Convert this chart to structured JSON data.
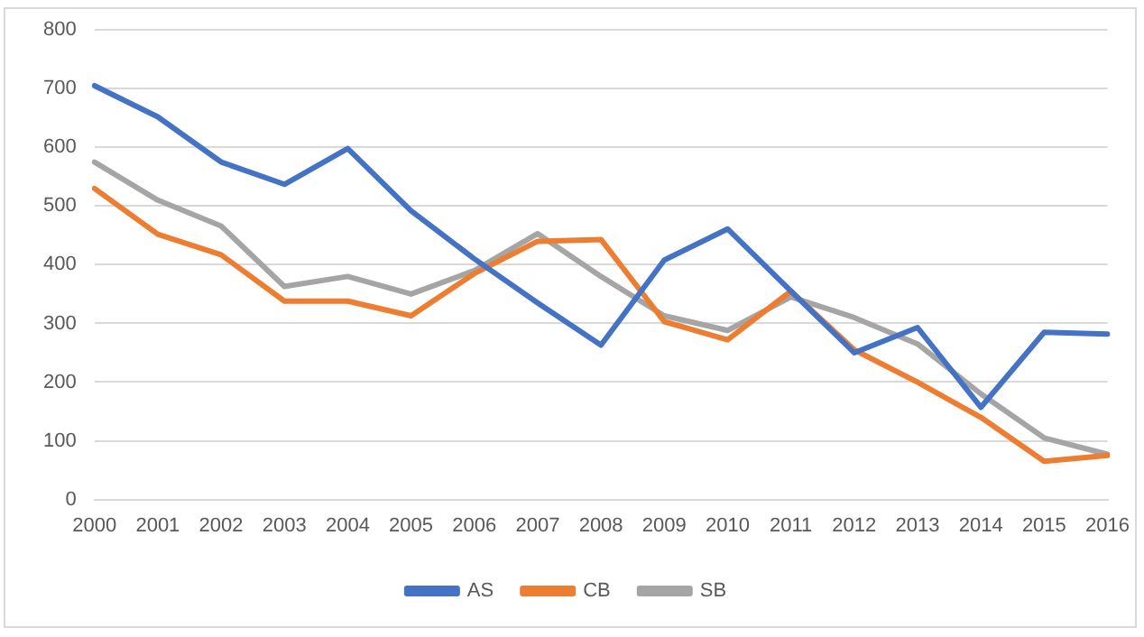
{
  "chart_data": {
    "type": "line",
    "categories": [
      "2000",
      "2001",
      "2002",
      "2003",
      "2004",
      "2005",
      "2006",
      "2007",
      "2008",
      "2009",
      "2010",
      "2011",
      "2012",
      "2013",
      "2014",
      "2015",
      "2016"
    ],
    "series": [
      {
        "name": "AS",
        "color": "#4472c4",
        "values": [
          705,
          652,
          575,
          537,
          598,
          492,
          410,
          335,
          263,
          408,
          461,
          355,
          250,
          293,
          157,
          285,
          282
        ]
      },
      {
        "name": "CB",
        "color": "#ed7d31",
        "values": [
          530,
          452,
          417,
          338,
          338,
          313,
          385,
          440,
          443,
          303,
          272,
          355,
          255,
          200,
          140,
          65,
          75
        ]
      },
      {
        "name": "SB",
        "color": "#a5a5a5",
        "values": [
          575,
          510,
          466,
          363,
          380,
          350,
          390,
          453,
          380,
          313,
          288,
          345,
          310,
          265,
          180,
          105,
          77
        ]
      }
    ],
    "ylim": [
      0,
      800
    ],
    "yticks": [
      0,
      100,
      200,
      300,
      400,
      500,
      600,
      700,
      800
    ],
    "grid": "y",
    "legend": "bottom",
    "marker": "none",
    "line_style": "solid"
  }
}
